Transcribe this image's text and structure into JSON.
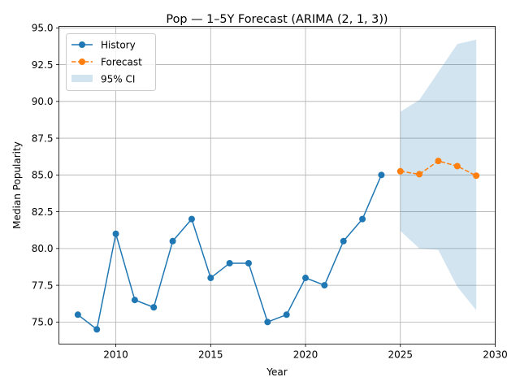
{
  "chart_data": {
    "type": "line",
    "title": "Pop — 1–5Y Forecast (ARIMA (2, 1, 3))",
    "xlabel": "Year",
    "ylabel": "Median Popularity",
    "xlim": [
      2007.0,
      2030.0
    ],
    "ylim": [
      73.5,
      95.1
    ],
    "x_ticks": [
      2010,
      2015,
      2020,
      2025,
      2030
    ],
    "y_ticks": [
      75.0,
      77.5,
      80.0,
      82.5,
      85.0,
      87.5,
      90.0,
      92.5,
      95.0
    ],
    "x_tick_labels": [
      "2010",
      "2015",
      "2020",
      "2025",
      "2030"
    ],
    "y_tick_labels": [
      "75.0",
      "77.5",
      "80.0",
      "82.5",
      "85.0",
      "87.5",
      "90.0",
      "92.5",
      "95.0"
    ],
    "grid": true,
    "legend_position": "upper-left",
    "series": [
      {
        "name": "History",
        "style": "solid",
        "marker": "circle",
        "color": "#1f77b4",
        "x": [
          2008,
          2009,
          2010,
          2011,
          2012,
          2013,
          2014,
          2015,
          2016,
          2017,
          2018,
          2019,
          2020,
          2021,
          2022,
          2023,
          2024
        ],
        "y": [
          75.5,
          74.5,
          81.0,
          76.5,
          76.0,
          80.5,
          82.0,
          78.0,
          79.0,
          79.0,
          75.0,
          75.5,
          78.0,
          77.5,
          80.5,
          82.0,
          85.0
        ]
      },
      {
        "name": "Forecast",
        "style": "dashed",
        "marker": "circle",
        "color": "#ff7f0e",
        "x": [
          2025,
          2026,
          2027,
          2028,
          2029
        ],
        "y": [
          85.25,
          85.05,
          85.95,
          85.6,
          84.95
        ]
      }
    ],
    "confidence_band": {
      "name": "95% CI",
      "color": "#1f77b4",
      "x": [
        2025,
        2026,
        2027,
        2028,
        2029
      ],
      "lower": [
        81.2,
        80.0,
        79.9,
        77.4,
        75.8
      ],
      "upper": [
        89.3,
        90.1,
        92.0,
        93.9,
        94.2
      ]
    }
  }
}
